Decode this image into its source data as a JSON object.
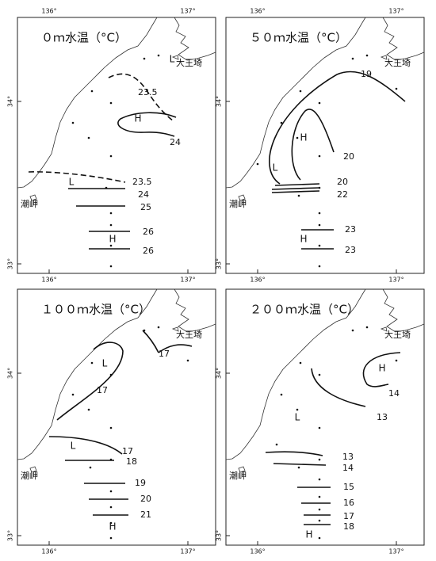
{
  "panels": [
    {
      "title": "０ｍ水温（°C）",
      "lon_labels": [
        "136°",
        "137°"
      ],
      "lat_labels": [
        "34°",
        "33°"
      ],
      "place_labels": [
        "大王埼",
        "潮岬"
      ],
      "markers": [
        "L",
        "H",
        "L",
        "H"
      ],
      "contour_labels": [
        23.5,
        24,
        23.5,
        24,
        25,
        26,
        26
      ]
    },
    {
      "title": "５０ｍ水温（°C）",
      "lon_labels": [
        "136°",
        "137°"
      ],
      "lat_labels": [
        "34°",
        "33°"
      ],
      "place_labels": [
        "大王埼",
        "潮岬"
      ],
      "markers": [
        "H",
        "L",
        "H"
      ],
      "contour_labels": [
        19,
        20,
        20,
        22,
        23,
        23
      ]
    },
    {
      "title": "１００ｍ水温（°C）",
      "lon_labels": [
        "136°",
        "137°"
      ],
      "lat_labels": [
        "34°",
        "33°"
      ],
      "place_labels": [
        "大王埼",
        "潮岬"
      ],
      "markers": [
        "L",
        "L",
        "H"
      ],
      "contour_labels": [
        17,
        17,
        17,
        18,
        19,
        20,
        21
      ]
    },
    {
      "title": "２００ｍ水温（°C）",
      "lon_labels": [
        "136°",
        "137°"
      ],
      "lat_labels": [
        "34°",
        "33°"
      ],
      "place_labels": [
        "大王埼",
        "潮岬"
      ],
      "markers": [
        "H",
        "L",
        "H"
      ],
      "contour_labels": [
        14,
        13,
        13,
        14,
        15,
        16,
        17,
        18
      ]
    }
  ]
}
